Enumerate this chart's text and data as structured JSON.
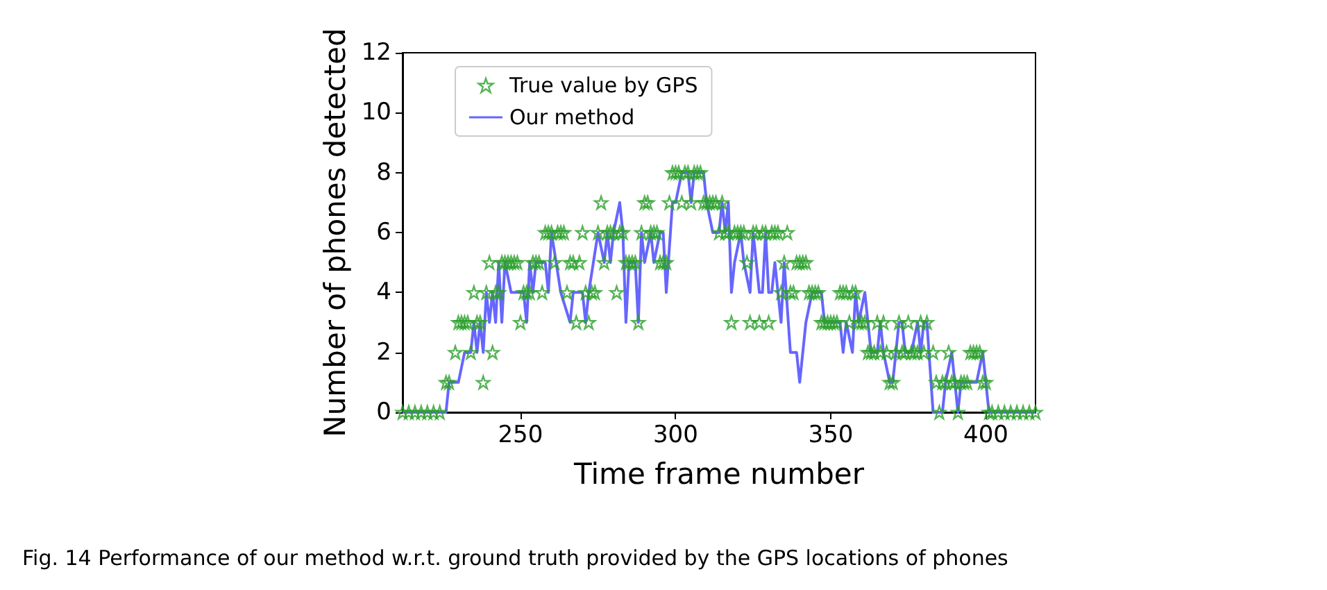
{
  "chart_data": {
    "type": "line",
    "xlabel": "Time frame number",
    "ylabel": "Number of phones detected",
    "xlim": [
      212,
      416
    ],
    "xticks": [
      250,
      300,
      350,
      400
    ],
    "ylim": [
      0,
      12
    ],
    "yticks": [
      0,
      2,
      4,
      6,
      8,
      10,
      12
    ],
    "grid": false,
    "legend": "top left",
    "annotations": [
      "Fig. 14  Performance of our method w.r.t. ground truth provided by the GPS locations of phones"
    ],
    "series": [
      {
        "name": "True value by GPS",
        "type": "scatter",
        "marker": "star",
        "color": "#2ca02c",
        "x": [
          212,
          214,
          216,
          218,
          220,
          222,
          224,
          226,
          227,
          229,
          230,
          231,
          232,
          233,
          234,
          235,
          236,
          237,
          238,
          239,
          240,
          241,
          242,
          243,
          244,
          245,
          246,
          247,
          248,
          249,
          250,
          251,
          252,
          253,
          254,
          255,
          256,
          257,
          258,
          259,
          260,
          261,
          262,
          263,
          264,
          265,
          266,
          267,
          268,
          269,
          270,
          271,
          272,
          273,
          274,
          275,
          276,
          277,
          278,
          279,
          280,
          281,
          282,
          283,
          284,
          285,
          286,
          287,
          288,
          289,
          290,
          291,
          292,
          293,
          294,
          295,
          296,
          297,
          298,
          299,
          300,
          301,
          302,
          303,
          304,
          305,
          306,
          307,
          308,
          309,
          310,
          311,
          312,
          313,
          314,
          315,
          316,
          317,
          318,
          319,
          320,
          321,
          322,
          323,
          324,
          325,
          326,
          327,
          328,
          329,
          330,
          331,
          332,
          333,
          334,
          335,
          336,
          337,
          338,
          339,
          340,
          341,
          342,
          343,
          344,
          345,
          346,
          347,
          348,
          349,
          350,
          351,
          352,
          353,
          354,
          355,
          356,
          357,
          358,
          359,
          360,
          361,
          362,
          363,
          364,
          365,
          366,
          367,
          368,
          369,
          370,
          371,
          372,
          373,
          374,
          375,
          376,
          377,
          378,
          379,
          380,
          381,
          383,
          384,
          385,
          386,
          387,
          388,
          389,
          390,
          391,
          392,
          393,
          394,
          395,
          396,
          397,
          398,
          399,
          400,
          401,
          402,
          404,
          406,
          408,
          410,
          412,
          414,
          416
        ],
        "values": [
          0,
          0,
          0,
          0,
          0,
          0,
          0,
          1,
          1,
          2,
          3,
          3,
          3,
          3,
          2,
          4,
          3,
          3,
          1,
          4,
          5,
          2,
          4,
          4,
          5,
          5,
          5,
          5,
          5,
          5,
          3,
          4,
          4,
          4,
          5,
          5,
          5,
          4,
          6,
          6,
          6,
          5,
          6,
          6,
          6,
          4,
          5,
          5,
          3,
          5,
          6,
          4,
          3,
          4,
          4,
          6,
          7,
          5,
          6,
          6,
          6,
          4,
          6,
          6,
          5,
          5,
          5,
          5,
          3,
          6,
          7,
          7,
          6,
          6,
          6,
          5,
          5,
          5,
          7,
          8,
          8,
          8,
          7,
          8,
          8,
          7,
          8,
          8,
          8,
          7,
          7,
          7,
          7,
          7,
          6,
          7,
          6,
          6,
          3,
          6,
          6,
          6,
          6,
          5,
          3,
          6,
          6,
          3,
          6,
          6,
          3,
          6,
          6,
          6,
          4,
          5,
          6,
          4,
          4,
          5,
          5,
          5,
          5,
          4,
          4,
          4,
          4,
          3,
          3,
          3,
          3,
          3,
          3,
          4,
          4,
          4,
          3,
          4,
          4,
          3,
          3,
          3,
          2,
          2,
          2,
          3,
          2,
          3,
          2,
          1,
          1,
          2,
          3,
          2,
          2,
          3,
          2,
          2,
          2,
          3,
          2,
          3,
          2,
          1,
          0,
          1,
          1,
          2,
          1,
          1,
          0,
          1,
          1,
          1,
          2,
          2,
          2,
          2,
          1,
          1,
          0,
          0,
          0,
          0,
          0,
          0,
          0,
          0,
          0
        ]
      },
      {
        "name": "Our method",
        "type": "line",
        "marker": "none",
        "color": "#6666ff",
        "x": [
          212,
          226,
          227,
          230,
          232,
          234,
          235,
          236,
          237,
          238,
          239,
          240,
          241,
          242,
          243,
          244,
          245,
          247,
          251,
          252,
          253,
          254,
          255,
          258,
          259,
          260,
          263,
          266,
          267,
          270,
          271,
          272,
          275,
          277,
          278,
          279,
          280,
          282,
          283,
          284,
          285,
          287,
          288,
          289,
          290,
          292,
          293,
          295,
          296,
          297,
          299,
          300,
          302,
          304,
          305,
          306,
          309,
          310,
          312,
          314,
          315,
          316,
          317,
          318,
          319,
          321,
          322,
          324,
          325,
          327,
          328,
          329,
          330,
          331,
          332,
          334,
          335,
          337,
          339,
          340,
          342,
          344,
          347,
          348,
          353,
          354,
          355,
          357,
          358,
          359,
          361,
          363,
          365,
          366,
          367,
          369,
          370,
          372,
          373,
          374,
          376,
          378,
          379,
          380,
          381,
          383,
          386,
          387,
          389,
          390,
          391,
          392,
          397,
          399,
          401,
          416
        ],
        "values": [
          0,
          0,
          1,
          1,
          2,
          2,
          3,
          2,
          3,
          2,
          4,
          3,
          4,
          3,
          5,
          3,
          5,
          4,
          4,
          3,
          5,
          4,
          5,
          5,
          4,
          6,
          4,
          3,
          4,
          4,
          3,
          4,
          6,
          5,
          6,
          5,
          6,
          7,
          6,
          3,
          5,
          5,
          3,
          6,
          5,
          6,
          5,
          6,
          6,
          4,
          7,
          7,
          8,
          8,
          7,
          8,
          8,
          7,
          6,
          6,
          7,
          6,
          7,
          4,
          5,
          6,
          5,
          4,
          6,
          4,
          4,
          6,
          4,
          4,
          5,
          3,
          5,
          2,
          2,
          1,
          3,
          4,
          4,
          3,
          3,
          2,
          3,
          2,
          4,
          3,
          4,
          2,
          2,
          3,
          2,
          1,
          1,
          3,
          3,
          2,
          2,
          3,
          2,
          3,
          3,
          0,
          0,
          1,
          2,
          1,
          0,
          1,
          1,
          2,
          0,
          0
        ]
      }
    ]
  }
}
